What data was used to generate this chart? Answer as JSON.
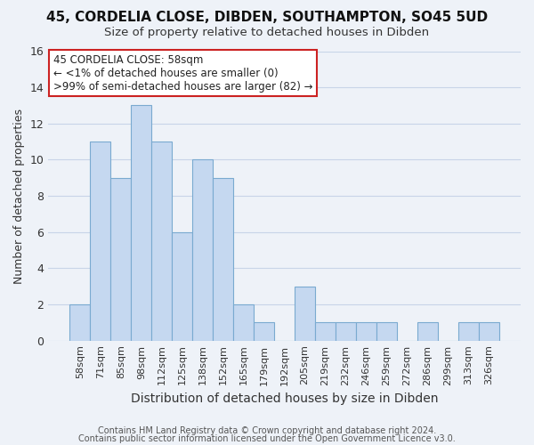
{
  "title1": "45, CORDELIA CLOSE, DIBDEN, SOUTHAMPTON, SO45 5UD",
  "title2": "Size of property relative to detached houses in Dibden",
  "xlabel": "Distribution of detached houses by size in Dibden",
  "ylabel": "Number of detached properties",
  "bar_labels": [
    "58sqm",
    "71sqm",
    "85sqm",
    "98sqm",
    "112sqm",
    "125sqm",
    "138sqm",
    "152sqm",
    "165sqm",
    "179sqm",
    "192sqm",
    "205sqm",
    "219sqm",
    "232sqm",
    "246sqm",
    "259sqm",
    "272sqm",
    "286sqm",
    "299sqm",
    "313sqm",
    "326sqm"
  ],
  "bar_values": [
    2,
    11,
    9,
    13,
    11,
    6,
    10,
    9,
    2,
    1,
    0,
    3,
    1,
    1,
    1,
    1,
    0,
    1,
    0,
    1,
    1
  ],
  "bar_color": "#c5d8f0",
  "bar_edge_color": "#7aaad0",
  "ylim": [
    0,
    16
  ],
  "yticks": [
    0,
    2,
    4,
    6,
    8,
    10,
    12,
    14,
    16
  ],
  "annotation_title": "45 CORDELIA CLOSE: 58sqm",
  "annotation_line1": "← <1% of detached houses are smaller (0)",
  "annotation_line2": ">99% of semi-detached houses are larger (82) →",
  "footer1": "Contains HM Land Registry data © Crown copyright and database right 2024.",
  "footer2": "Contains public sector information licensed under the Open Government Licence v3.0.",
  "background_color": "#eef2f8",
  "grid_color": "#c8d4e8",
  "title1_fontsize": 11,
  "title2_fontsize": 9.5,
  "xlabel_fontsize": 10,
  "ylabel_fontsize": 9,
  "tick_fontsize": 8,
  "footer_fontsize": 7
}
